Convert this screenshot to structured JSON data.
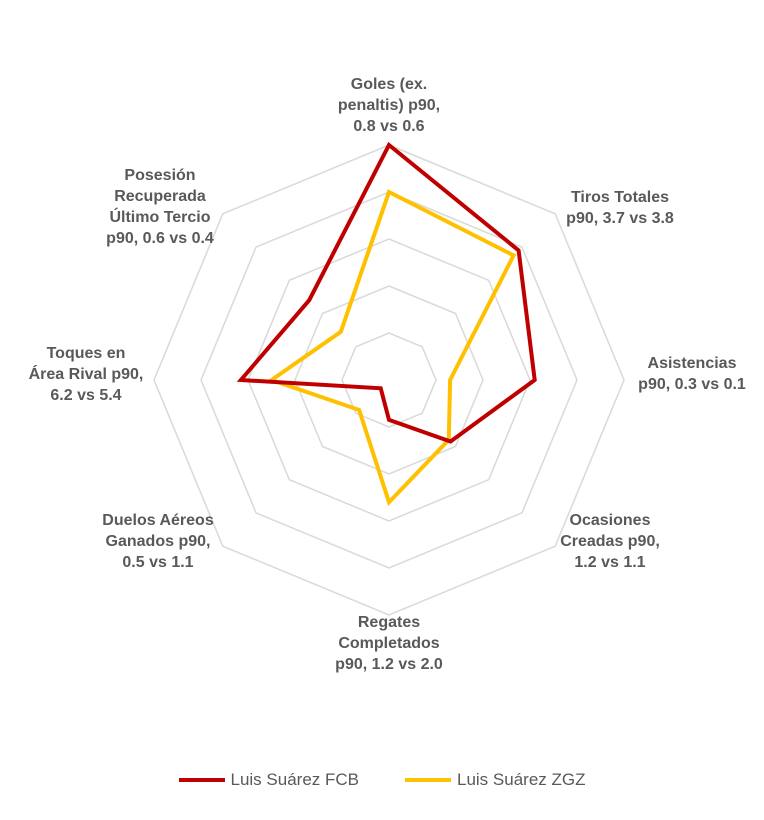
{
  "chart_data": {
    "type": "radar",
    "axes": [
      "Goles (ex.\npenaltis) p90,\n0.8 vs 0.6",
      "Tiros Totales\np90, 3.7 vs 3.8",
      "Asistencias\np90, 0.3 vs 0.1",
      "Ocasiones\nCreadas p90,\n1.2 vs 1.1",
      "Regates\nCompletados\np90, 1.2 vs 2.0",
      "Duelos Aéreos\nGanados p90,\n0.5 vs 1.1",
      "Toques en\nÁrea Rival p90,\n6.2 vs 5.4",
      "Posesión\nRecuperada\nÚltimo Tercio\np90, 0.6 vs 0.4"
    ],
    "scale_max": 1.0,
    "rings": 5,
    "series": [
      {
        "name": "Luis Suárez FCB",
        "color": "#C00000",
        "values": [
          1.0,
          0.78,
          0.62,
          0.37,
          0.17,
          0.05,
          0.63,
          0.48
        ]
      },
      {
        "name": "Luis Suárez ZGZ",
        "color": "#FFC000",
        "values": [
          0.8,
          0.75,
          0.26,
          0.36,
          0.52,
          0.18,
          0.5,
          0.29
        ]
      }
    ],
    "legend_position": "bottom",
    "grid_color": "#D9D9D9"
  }
}
